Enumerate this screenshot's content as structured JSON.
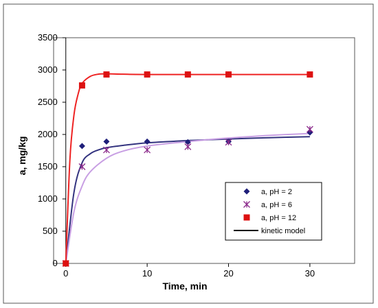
{
  "chart_data": {
    "type": "scatter",
    "xlabel": "Time, min",
    "ylabel": "a, mg/kg",
    "xlim": [
      -1.5,
      35.5
    ],
    "ylim": [
      0,
      3500
    ],
    "xticks": [
      0,
      10,
      20,
      30
    ],
    "yticks": [
      0,
      500,
      1000,
      1500,
      2000,
      2500,
      3000,
      3500
    ],
    "grid": false,
    "legend_position": "bottom-right",
    "series": [
      {
        "name": "a, pH = 2",
        "marker": "diamond",
        "color": "#1F1F7A",
        "curve_color": "#33337F",
        "points": [
          [
            0,
            0
          ],
          [
            2,
            1820
          ],
          [
            5,
            1890
          ],
          [
            10,
            1890
          ],
          [
            15,
            1880
          ],
          [
            20,
            1890
          ],
          [
            30,
            2030
          ]
        ],
        "fit_curve": [
          [
            0,
            0
          ],
          [
            1,
            1100
          ],
          [
            2,
            1560
          ],
          [
            3,
            1700
          ],
          [
            4,
            1760
          ],
          [
            5,
            1795
          ],
          [
            7,
            1830
          ],
          [
            10,
            1870
          ],
          [
            15,
            1905
          ],
          [
            20,
            1930
          ],
          [
            25,
            1950
          ],
          [
            30,
            1965
          ]
        ]
      },
      {
        "name": "a, pH = 6",
        "marker": "asterisk",
        "color": "#8B2A8B",
        "curve_color": "#C89FE3",
        "points": [
          [
            0,
            0
          ],
          [
            2,
            1500
          ],
          [
            5,
            1760
          ],
          [
            10,
            1760
          ],
          [
            15,
            1810
          ],
          [
            20,
            1880
          ],
          [
            30,
            2080
          ]
        ],
        "fit_curve": [
          [
            0,
            0
          ],
          [
            1,
            800
          ],
          [
            2,
            1200
          ],
          [
            3,
            1420
          ],
          [
            5,
            1630
          ],
          [
            7,
            1740
          ],
          [
            10,
            1820
          ],
          [
            15,
            1890
          ],
          [
            20,
            1945
          ],
          [
            25,
            1985
          ],
          [
            30,
            2015
          ]
        ]
      },
      {
        "name": "a, pH = 12",
        "marker": "square",
        "color": "#DD1111",
        "curve_color": "#EE2222",
        "points": [
          [
            0,
            0
          ],
          [
            2,
            2760
          ],
          [
            5,
            2930
          ],
          [
            10,
            2930
          ],
          [
            15,
            2930
          ],
          [
            20,
            2930
          ],
          [
            30,
            2930
          ]
        ],
        "fit_curve": [
          [
            0,
            0
          ],
          [
            0.5,
            1600
          ],
          [
            1,
            2300
          ],
          [
            1.5,
            2620
          ],
          [
            2,
            2790
          ],
          [
            3,
            2900
          ],
          [
            4,
            2935
          ],
          [
            5,
            2940
          ],
          [
            7,
            2935
          ],
          [
            10,
            2930
          ],
          [
            20,
            2930
          ],
          [
            30,
            2930
          ]
        ]
      }
    ],
    "legend": [
      {
        "label": "a, pH = 2",
        "marker": "diamond",
        "color": "#1F1F7A"
      },
      {
        "label": "a, pH = 6",
        "marker": "asterisk",
        "color": "#8B2A8B"
      },
      {
        "label": "a, pH = 12",
        "marker": "square",
        "color": "#DD1111"
      },
      {
        "label": "kinetic model",
        "marker": "line",
        "color": "#000000"
      }
    ]
  }
}
